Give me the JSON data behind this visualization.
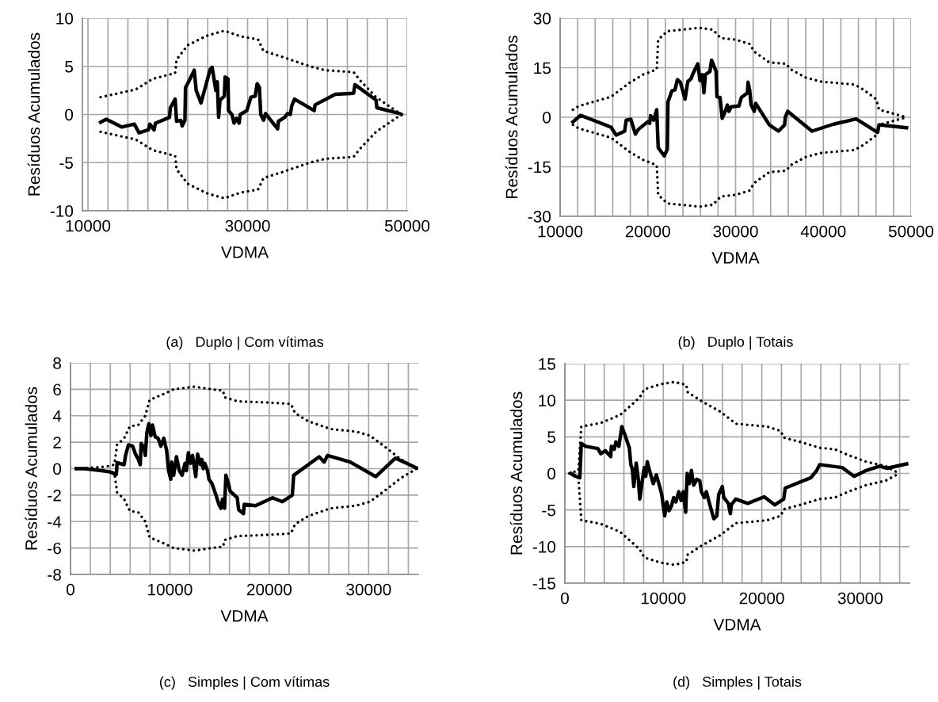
{
  "chart_data": [
    {
      "type": "line",
      "xlabel": "VDMA",
      "ylabel": "Resíduos Acumulados",
      "annotations": [
        "(a)   Duplo | Com vítimas"
      ],
      "grid": true,
      "marker": "none",
      "xlim": [
        9300,
        50000
      ],
      "ylim": [
        -10,
        10
      ],
      "yticks": [
        -10,
        -5,
        0,
        5,
        10
      ],
      "xticks": [
        10000,
        {
          "value": 12500,
          "label": null
        },
        {
          "value": 15000,
          "label": null
        },
        {
          "value": 17500,
          "label": null
        },
        {
          "value": 20000,
          "label": null
        },
        {
          "value": 22500,
          "label": null
        },
        {
          "value": 25000,
          "label": null
        },
        {
          "value": 27500,
          "label": null
        },
        30000,
        {
          "value": 32500,
          "label": null
        },
        {
          "value": 35000,
          "label": null
        },
        {
          "value": 37500,
          "label": null
        },
        {
          "value": 40000,
          "label": null
        },
        {
          "value": 42500,
          "label": null
        },
        {
          "value": 45000,
          "label": null
        },
        {
          "value": 47500,
          "label": null
        },
        50000
      ],
      "series": [
        {
          "color": "#000000",
          "line_style": "solid",
          "x": [
            11585,
            12290,
            14225,
            15810,
            16400,
            17570,
            17750,
            18275,
            18450,
            20210,
            20320,
            20920,
            21100,
            21620,
            21800,
            22150,
            22220,
            22675,
            23310,
            23560,
            24160,
            25320,
            25560,
            26020,
            26200,
            26370,
            26550,
            27080,
            27180,
            27540,
            27610,
            28030,
            28310,
            28590,
            28940,
            29080,
            29900,
            30420,
            30950,
            31200,
            31480,
            31650,
            32000,
            32250,
            33760,
            33870,
            34650,
            35000,
            35350,
            35530,
            35880,
            38350,
            38450,
            40990,
            43280,
            43450,
            46090,
            46200,
            49090,
            49260
          ],
          "values": [
            -0.8,
            -0.5,
            -1.3,
            -1.0,
            -1.9,
            -1.6,
            -1.0,
            -1.6,
            -0.9,
            -0.3,
            0.7,
            1.6,
            -0.7,
            -0.6,
            -1.2,
            -0.6,
            2.8,
            3.5,
            4.6,
            2.5,
            1.2,
            4.7,
            4.9,
            2.5,
            3.4,
            -0.3,
            1.5,
            1.9,
            3.9,
            3.7,
            0.4,
            0.0,
            -0.9,
            -0.4,
            -0.9,
            0.0,
            0.4,
            1.8,
            1.9,
            3.2,
            2.8,
            0.0,
            -0.6,
            0.1,
            -1.5,
            -0.7,
            -0.3,
            0.1,
            0.0,
            0.9,
            1.6,
            0.4,
            1.0,
            2.1,
            2.2,
            3.1,
            1.5,
            0.7,
            0.1,
            0.0
          ]
        },
        {
          "color": "#000000",
          "line_style": "dotted",
          "x": [
            11585,
            15990,
            18100,
            20920,
            21100,
            22500,
            24960,
            27080,
            29190,
            31300,
            32000,
            34290,
            37810,
            39750,
            43280,
            44150,
            46090,
            49090
          ],
          "values": [
            1.8,
            2.6,
            3.7,
            4.3,
            5.7,
            7.2,
            8.2,
            8.7,
            8.1,
            7.8,
            6.6,
            6.0,
            5.0,
            4.6,
            4.4,
            3.5,
            1.8,
            0.1
          ]
        },
        {
          "color": "#000000",
          "line_style": "dotted",
          "x": [
            11585,
            15990,
            18100,
            20920,
            21100,
            22500,
            24960,
            27080,
            29190,
            31300,
            32000,
            34290,
            37810,
            39750,
            43280,
            44150,
            46090,
            49090
          ],
          "values": [
            -1.8,
            -2.6,
            -3.7,
            -4.3,
            -5.7,
            -7.2,
            -8.2,
            -8.7,
            -8.1,
            -7.8,
            -6.6,
            -6.0,
            -5.0,
            -4.6,
            -4.4,
            -3.5,
            -1.8,
            -0.1
          ]
        }
      ]
    },
    {
      "type": "line",
      "xlabel": "VDMA",
      "ylabel": "Resíduos Acumulados",
      "annotations": [
        "(b)   Duplo | Totais"
      ],
      "grid": true,
      "marker": "none",
      "xlim": [
        10000,
        50000
      ],
      "ylim": [
        -30,
        30
      ],
      "yticks": [
        -30,
        -15,
        0,
        15,
        30
      ],
      "xticks": [
        10000,
        {
          "value": 12000,
          "label": null
        },
        {
          "value": 14000,
          "label": null
        },
        {
          "value": 16000,
          "label": null
        },
        {
          "value": 18000,
          "label": null
        },
        20000,
        {
          "value": 22000,
          "label": null
        },
        {
          "value": 24000,
          "label": null
        },
        {
          "value": 26000,
          "label": null
        },
        {
          "value": 28000,
          "label": null
        },
        30000,
        {
          "value": 32000,
          "label": null
        },
        {
          "value": 34000,
          "label": null
        },
        {
          "value": 36000,
          "label": null
        },
        {
          "value": 38000,
          "label": null
        },
        40000,
        {
          "value": 42000,
          "label": null
        },
        {
          "value": 44000,
          "label": null
        },
        {
          "value": 46000,
          "label": null
        },
        {
          "value": 48000,
          "label": null
        },
        50000
      ],
      "series": [
        {
          "color": "#000000",
          "line_style": "solid",
          "x": [
            11460,
            12330,
            15800,
            16390,
            17360,
            17530,
            18060,
            18580,
            18920,
            19960,
            20210,
            20310,
            20660,
            21010,
            21180,
            21870,
            22220,
            22290,
            22740,
            23090,
            23370,
            23710,
            24240,
            24550,
            24930,
            25170,
            25690,
            25940,
            26210,
            26390,
            26560,
            27080,
            27260,
            27780,
            27880,
            28230,
            28470,
            28820,
            29060,
            29240,
            29510,
            30380,
            30660,
            31350,
            31420,
            31600,
            31770,
            32120,
            32290,
            33850,
            34890,
            35590,
            35660,
            35940,
            38710,
            41150,
            43750,
            46180,
            46350,
            49480
          ],
          "values": [
            -1.4,
            0.6,
            -3.0,
            -5.4,
            -4.2,
            -0.9,
            -0.6,
            -5.1,
            -3.7,
            -1.4,
            -1.8,
            0.5,
            -0.9,
            2.3,
            -9.2,
            -11.7,
            -9.7,
            4.6,
            8.0,
            8.3,
            11.4,
            10.6,
            5.5,
            10.8,
            11.7,
            13.4,
            16.2,
            11.1,
            12.9,
            7.4,
            12.9,
            13.9,
            17.3,
            13.9,
            6.2,
            6.0,
            -0.3,
            1.8,
            3.7,
            1.8,
            3.2,
            3.4,
            6.0,
            7.4,
            10.6,
            8.3,
            3.7,
            1.8,
            4.2,
            -2.3,
            -4.2,
            -2.3,
            0.0,
            1.8,
            -4.2,
            -2.1,
            -0.5,
            -4.6,
            -2.3,
            -3.2
          ]
        },
        {
          "color": "#000000",
          "line_style": "dotted",
          "x": [
            11460,
            12150,
            15800,
            17880,
            19440,
            21010,
            21180,
            22220,
            23780,
            25870,
            27430,
            28300,
            30030,
            31600,
            32120,
            33850,
            35760,
            36280,
            38020,
            39760,
            43580,
            44620,
            46010,
            46350,
            49480
          ],
          "values": [
            2.3,
            3.4,
            6.2,
            10.4,
            12.9,
            14.5,
            23.5,
            26.1,
            26.5,
            27.1,
            26.5,
            24.0,
            23.5,
            22.2,
            19.9,
            16.6,
            16.2,
            14.5,
            12.0,
            10.8,
            9.9,
            8.3,
            5.5,
            2.3,
            0.0
          ]
        },
        {
          "color": "#000000",
          "line_style": "dotted",
          "x": [
            11460,
            12150,
            15800,
            17880,
            19440,
            21010,
            21180,
            22220,
            23780,
            25870,
            27430,
            28300,
            30030,
            31600,
            32120,
            33850,
            35760,
            36280,
            38020,
            39760,
            43580,
            44620,
            46010,
            46350,
            49480
          ],
          "values": [
            -2.3,
            -3.4,
            -6.2,
            -10.4,
            -12.9,
            -14.5,
            -23.5,
            -26.1,
            -26.5,
            -27.1,
            -26.5,
            -24.0,
            -23.5,
            -22.2,
            -19.9,
            -16.6,
            -16.2,
            -14.5,
            -12.0,
            -10.8,
            -9.9,
            -8.3,
            -5.5,
            -2.3,
            0.0
          ]
        }
      ]
    },
    {
      "type": "line",
      "xlabel": "VDMA",
      "ylabel": "Resíduos Acumulados",
      "annotations": [
        "(c)   Simples | Com vítimas"
      ],
      "grid": true,
      "marker": "none",
      "xlim": [
        0,
        35000
      ],
      "ylim": [
        -8,
        8
      ],
      "yticks": [
        -8,
        -6,
        -4,
        -2,
        0,
        2,
        4,
        6,
        8
      ],
      "xticks": [
        0,
        {
          "value": 2000,
          "label": null
        },
        {
          "value": 4000,
          "label": null
        },
        {
          "value": 6000,
          "label": null
        },
        {
          "value": 8000,
          "label": null
        },
        10000,
        {
          "value": 12000,
          "label": null
        },
        {
          "value": 14000,
          "label": null
        },
        {
          "value": 16000,
          "label": null
        },
        {
          "value": 18000,
          "label": null
        },
        20000,
        {
          "value": 22000,
          "label": null
        },
        {
          "value": 24000,
          "label": null
        },
        {
          "value": 26000,
          "label": null
        },
        {
          "value": 28000,
          "label": null
        },
        30000,
        {
          "value": 32000,
          "label": null
        },
        {
          "value": 34000,
          "label": null
        }
      ],
      "series": [
        {
          "color": "#000000",
          "line_style": "solid",
          "x": [
            570,
            1420,
            3130,
            3980,
            4610,
            4690,
            5400,
            5540,
            5830,
            6260,
            6540,
            6820,
            7020,
            7110,
            7390,
            7530,
            7680,
            7880,
            8100,
            8250,
            8530,
            8810,
            9100,
            9380,
            9670,
            9870,
            10090,
            10180,
            10380,
            10660,
            10950,
            11230,
            11520,
            11660,
            11860,
            12080,
            12280,
            12450,
            12600,
            12790,
            13080,
            13220,
            13360,
            13510,
            13790,
            13930,
            14220,
            14640,
            14930,
            15130,
            15300,
            15500,
            15640,
            15920,
            16060,
            16780,
            16920,
            17400,
            17490,
            18620,
            20330,
            21320,
            22320,
            22460,
            25020,
            25530,
            25870,
            28150,
            30710,
            32700,
            34830
          ],
          "values": [
            0,
            0,
            -0.15,
            -0.25,
            -0.45,
            0.45,
            0.3,
            1.0,
            1.8,
            1.7,
            1.1,
            0.7,
            0.3,
            1.9,
            1.6,
            1.0,
            2.7,
            3.4,
            2.5,
            3.3,
            2.4,
            2.3,
            1.7,
            2.3,
            1.4,
            -0.15,
            -0.8,
            0.5,
            -0.5,
            0.9,
            -0.15,
            -0.5,
            0.4,
            -0.15,
            1.2,
            0.4,
            1.0,
            0.2,
            -0.6,
            1.1,
            0.3,
            0.7,
            0.0,
            0.4,
            -0.15,
            -0.8,
            -1.1,
            -2.0,
            -2.7,
            -3.0,
            -2.3,
            -3.0,
            -0.5,
            -1.2,
            -1.7,
            -2.2,
            -3.1,
            -3.4,
            -2.7,
            -2.8,
            -2.2,
            -2.5,
            -2.0,
            -0.5,
            0.9,
            0.5,
            1.0,
            0.5,
            -0.6,
            0.8,
            0.05
          ]
        },
        {
          "color": "#000000",
          "line_style": "dotted",
          "x": [
            570,
            3550,
            4410,
            4690,
            5400,
            5970,
            6820,
            7530,
            7960,
            9240,
            10380,
            12510,
            14220,
            15350,
            15500,
            16780,
            19900,
            22180,
            22600,
            23880,
            26160,
            28720,
            30140,
            31560,
            33270,
            34830
          ],
          "values": [
            0,
            0.15,
            0.3,
            1.8,
            2.3,
            3.2,
            3.3,
            4.0,
            5.2,
            5.6,
            6.0,
            6.2,
            6.0,
            5.9,
            5.4,
            5.1,
            5.0,
            4.9,
            4.2,
            3.6,
            3.0,
            2.8,
            2.5,
            1.7,
            0.7,
            0.0
          ]
        },
        {
          "color": "#000000",
          "line_style": "dotted",
          "x": [
            570,
            3550,
            4410,
            4690,
            5400,
            5970,
            6820,
            7530,
            7960,
            9240,
            10380,
            12510,
            14220,
            15350,
            15500,
            16780,
            19900,
            22180,
            22600,
            23880,
            26160,
            28720,
            30140,
            31560,
            33270,
            34830
          ],
          "values": [
            0,
            -0.15,
            -0.3,
            -1.8,
            -2.3,
            -3.2,
            -3.3,
            -4.0,
            -5.2,
            -5.6,
            -6.0,
            -6.2,
            -6.0,
            -5.9,
            -5.4,
            -5.1,
            -5.0,
            -4.9,
            -4.2,
            -3.6,
            -3.0,
            -2.8,
            -2.5,
            -1.7,
            -0.7,
            0.0
          ]
        }
      ]
    },
    {
      "type": "line",
      "xlabel": "VDMA",
      "ylabel": "Resíduos Acumulados",
      "annotations": [
        "(d)   Simples | Totais"
      ],
      "grid": true,
      "marker": "none",
      "xlim": [
        0,
        35000
      ],
      "ylim": [
        -15,
        15
      ],
      "yticks": [
        -15,
        -10,
        -5,
        0,
        5,
        10,
        15
      ],
      "xticks": [
        0,
        {
          "value": 2000,
          "label": null
        },
        {
          "value": 4000,
          "label": null
        },
        {
          "value": 6000,
          "label": null
        },
        {
          "value": 8000,
          "label": null
        },
        10000,
        {
          "value": 12000,
          "label": null
        },
        {
          "value": 14000,
          "label": null
        },
        {
          "value": 16000,
          "label": null
        },
        {
          "value": 18000,
          "label": null
        },
        20000,
        {
          "value": 22000,
          "label": null
        },
        {
          "value": 24000,
          "label": null
        },
        {
          "value": 26000,
          "label": null
        },
        {
          "value": 28000,
          "label": null
        },
        30000,
        {
          "value": 32000,
          "label": null
        },
        {
          "value": 34000,
          "label": null
        }
      ],
      "series": [
        {
          "color": "#000000",
          "line_style": "solid",
          "x": [
            610,
            910,
            1520,
            1670,
            2130,
            3350,
            3650,
            4110,
            4660,
            4720,
            5020,
            5180,
            5480,
            5790,
            6090,
            6550,
            6700,
            6850,
            7000,
            7250,
            7460,
            7610,
            7860,
            8070,
            8220,
            8370,
            8680,
            8980,
            9290,
            9590,
            9840,
            9960,
            10140,
            10350,
            10570,
            10810,
            11050,
            11270,
            11570,
            11810,
            12030,
            12270,
            12420,
            12640,
            12850,
            13090,
            13400,
            13700,
            13860,
            14160,
            14370,
            14770,
            15130,
            15440,
            15620,
            15990,
            16140,
            16600,
            16810,
            16900,
            17360,
            18570,
            20250,
            21320,
            22230,
            22380,
            24970,
            25580,
            25880,
            28170,
            29380,
            30600,
            31970,
            32730,
            34710
          ],
          "values": [
            0,
            -0.3,
            -0.6,
            4.1,
            3.7,
            3.4,
            2.7,
            3.1,
            2.3,
            3.7,
            3.3,
            4.3,
            3.7,
            6.4,
            5.3,
            3.5,
            1.2,
            0.6,
            -1.8,
            1.4,
            -0.8,
            -3.5,
            -1.0,
            0.8,
            -0.4,
            1.6,
            0.0,
            -1.4,
            -0.2,
            -1.6,
            -2.9,
            -4.1,
            -5.8,
            -3.9,
            -5.1,
            -4.5,
            -3.3,
            -3.9,
            -2.5,
            -3.7,
            -2.5,
            -5.3,
            0.0,
            -1.4,
            0.4,
            -1.6,
            -0.8,
            -1.0,
            -2.5,
            -3.3,
            -2.5,
            -4.5,
            -6.2,
            -5.8,
            -2.9,
            -1.8,
            -3.3,
            -4.1,
            -5.5,
            -4.3,
            -3.5,
            -4.1,
            -3.2,
            -4.3,
            -3.5,
            -2.0,
            -0.6,
            0.4,
            1.2,
            0.8,
            -0.4,
            0.4,
            1.0,
            0.7,
            1.3
          ]
        },
        {
          "color": "#000000",
          "line_style": "dotted",
          "x": [
            460,
            1370,
            1670,
            3650,
            5630,
            7610,
            8070,
            9740,
            11110,
            12330,
            12480,
            13860,
            15840,
            17360,
            20550,
            21920,
            22230,
            23900,
            25880,
            27410,
            28780,
            30600,
            32580,
            33950
          ],
          "values": [
            0,
            0.4,
            6.4,
            6.9,
            8.0,
            10.4,
            11.5,
            12.2,
            12.5,
            12.1,
            11.1,
            9.9,
            8.4,
            6.8,
            6.4,
            5.8,
            4.9,
            4.3,
            3.5,
            3.3,
            2.5,
            1.6,
            1.0,
            0.0
          ]
        },
        {
          "color": "#000000",
          "line_style": "dotted",
          "x": [
            460,
            1370,
            1670,
            3650,
            5630,
            7610,
            8070,
            9740,
            11110,
            12330,
            12480,
            13860,
            15840,
            17360,
            20550,
            21920,
            22230,
            23900,
            25880,
            27410,
            28780,
            30600,
            32580,
            33950
          ],
          "values": [
            0,
            -0.4,
            -6.4,
            -6.9,
            -8.0,
            -10.4,
            -11.5,
            -12.2,
            -12.5,
            -12.1,
            -11.1,
            -9.9,
            -8.4,
            -6.8,
            -6.4,
            -5.8,
            -4.9,
            -4.3,
            -3.5,
            -3.3,
            -2.5,
            -1.6,
            -1.0,
            0.0
          ]
        }
      ]
    }
  ]
}
